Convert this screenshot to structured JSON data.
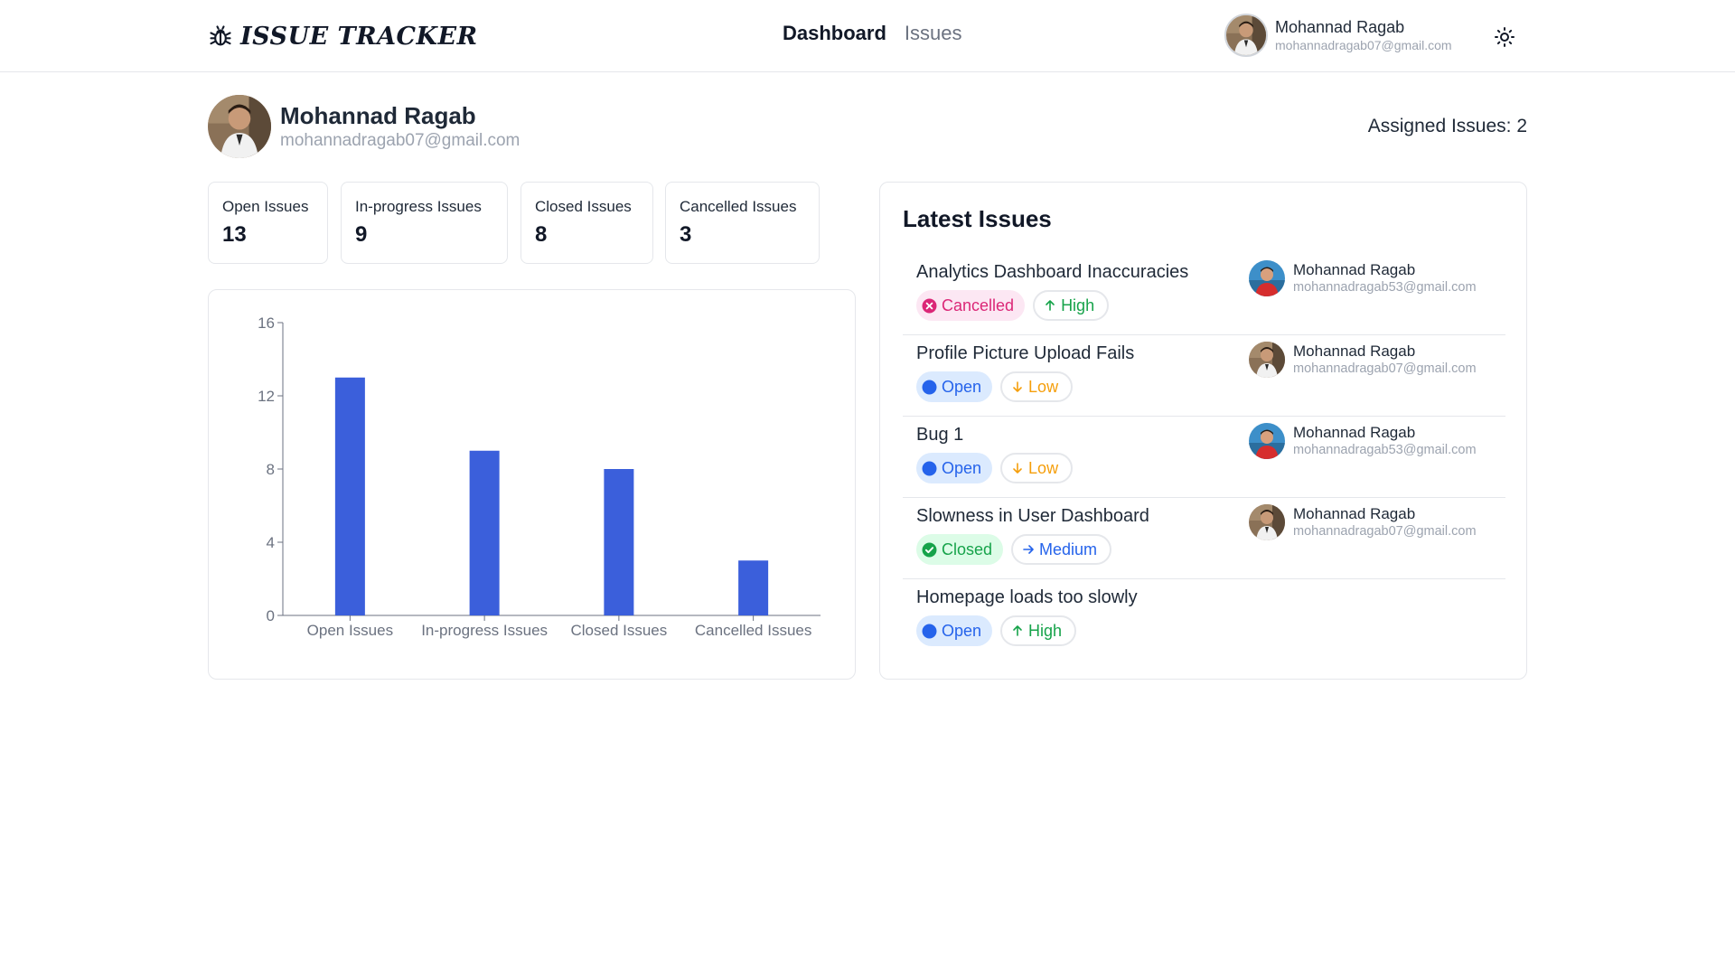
{
  "header": {
    "logo_text": "ISSUE TRACKER",
    "nav": [
      {
        "label": "Dashboard",
        "active": true
      },
      {
        "label": "Issues",
        "active": false
      }
    ],
    "user": {
      "name": "Mohannad Ragab",
      "email": "mohannadragab07@gmail.com"
    },
    "theme_icon": "sun-icon"
  },
  "profile": {
    "name": "Mohannad Ragab",
    "email": "mohannadragab07@gmail.com",
    "assigned_label": "Assigned Issues: 2"
  },
  "stats": [
    {
      "label": "Open Issues",
      "value": "13"
    },
    {
      "label": "In-progress Issues",
      "value": "9"
    },
    {
      "label": "Closed Issues",
      "value": "8"
    },
    {
      "label": "Cancelled Issues",
      "value": "3"
    }
  ],
  "chart_data": {
    "type": "bar",
    "categories": [
      "Open Issues",
      "In-progress Issues",
      "Closed Issues",
      "Cancelled Issues"
    ],
    "values": [
      13,
      9,
      8,
      3
    ],
    "yticks": [
      0,
      4,
      8,
      12,
      16
    ],
    "ylim": [
      0,
      16
    ],
    "bar_color": "#3b5fdb",
    "grid": false
  },
  "latest": {
    "title": "Latest Issues",
    "issues": [
      {
        "title": "Analytics Dashboard Inaccuracies",
        "status": "Cancelled",
        "status_kind": "cancelled",
        "priority": "High",
        "priority_kind": "high",
        "assignee": {
          "name": "Mohannad Ragab",
          "email": "mohannadragab53@gmail.com",
          "avatar": "red"
        }
      },
      {
        "title": "Profile Picture Upload Fails",
        "status": "Open",
        "status_kind": "open",
        "priority": "Low",
        "priority_kind": "low",
        "assignee": {
          "name": "Mohannad Ragab",
          "email": "mohannadragab07@gmail.com",
          "avatar": "photo"
        }
      },
      {
        "title": "Bug 1",
        "status": "Open",
        "status_kind": "open",
        "priority": "Low",
        "priority_kind": "low",
        "assignee": {
          "name": "Mohannad Ragab",
          "email": "mohannadragab53@gmail.com",
          "avatar": "red"
        }
      },
      {
        "title": "Slowness in User Dashboard",
        "status": "Closed",
        "status_kind": "closed",
        "priority": "Medium",
        "priority_kind": "medium",
        "assignee": {
          "name": "Mohannad Ragab",
          "email": "mohannadragab07@gmail.com",
          "avatar": "photo"
        }
      },
      {
        "title": "Homepage loads too slowly",
        "status": "Open",
        "status_kind": "open",
        "priority": "High",
        "priority_kind": "high",
        "assignee": null
      }
    ]
  },
  "colors": {
    "open": "#2563eb",
    "cancelled": "#db2777",
    "closed": "#16a34a",
    "high": "#16a34a",
    "low": "#f59e0b",
    "medium": "#2563eb"
  }
}
